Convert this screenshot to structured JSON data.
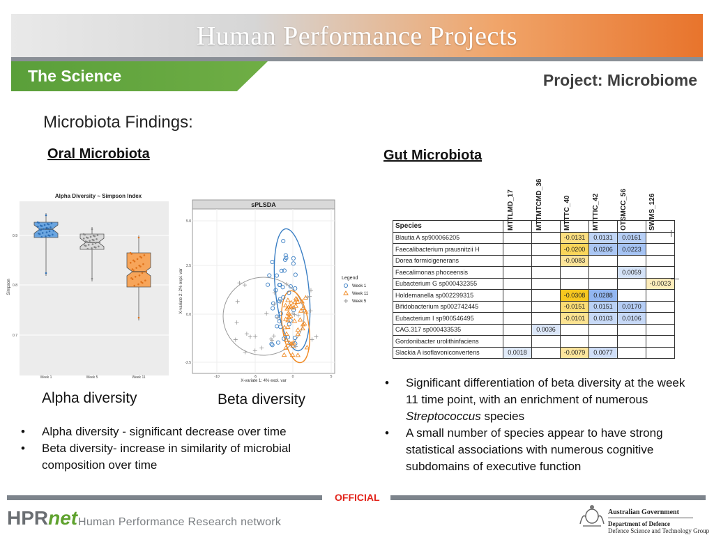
{
  "header": {
    "title": "Human Performance Projects",
    "section_tab": "The Science",
    "project": "Project: Microbiome"
  },
  "main": {
    "findings_title": "Microbiota Findings:",
    "oral_title": "Oral Microbiota",
    "gut_title": "Gut Microbiota",
    "alpha_caption": "Alpha diversity",
    "beta_caption": "Beta diversity",
    "left_bullets": [
      "Alpha diversity - significant decrease over time",
      "Beta diversity- increase in similarity of microbial composition over time"
    ],
    "right_bullets": [
      {
        "pre": "Significant differentiation of beta diversity at the week 11 time point, with an enrichment of numerous ",
        "em": "Streptococcus",
        "post": " species"
      },
      {
        "pre": "A small number of species appear to have strong statistical associations with numerous cognitive subdomains of executive function",
        "em": "",
        "post": ""
      }
    ]
  },
  "alpha_chart": {
    "title": "Alpha Diversity ~ Simpson Index",
    "ylabel": "Simpson",
    "y_ticks": [
      "0.9",
      "0.8",
      "0.7"
    ],
    "categories": [
      "Week 1",
      "Week 5",
      "Week 11"
    ]
  },
  "beta_chart": {
    "title": "sPLSDA",
    "xlabel": "X-variate 1: 4% expl. var",
    "ylabel": "X-variate 2: 2% expl. var",
    "x_ticks": [
      "-10",
      "-5",
      "0",
      "5"
    ],
    "y_ticks": [
      "5.0",
      "2.5",
      "0.0",
      "-2.5"
    ],
    "legend_title": "Legend",
    "legend": [
      {
        "label": "Week 1",
        "color": "#3b7fc4"
      },
      {
        "label": "Week 11",
        "color": "#f08a24"
      },
      {
        "label": "Week 5",
        "color": "#999999"
      }
    ]
  },
  "gut_table": {
    "header": "Species",
    "columns": [
      "MTTLMD_17",
      "MTTMTCMD_36",
      "MTTTC_40",
      "MTTTIC_42",
      "OTSMCC_56",
      "SWMS_126"
    ],
    "rows": [
      {
        "species": "Blautia A sp900066205",
        "values": [
          "",
          "",
          "-0.0131",
          "0.0131",
          "0.0161",
          ""
        ]
      },
      {
        "species": "Faecalibacterium prausnitzii H",
        "values": [
          "",
          "",
          "-0.0200",
          "0.0206",
          "0.0223",
          ""
        ]
      },
      {
        "species": "Dorea formicigenerans",
        "values": [
          "",
          "",
          "-0.0083",
          "",
          "",
          ""
        ]
      },
      {
        "species": "Faecalimonas phoceensis",
        "values": [
          "",
          "",
          "",
          "",
          "0.0059",
          ""
        ]
      },
      {
        "species": "Eubacterium G sp000432355",
        "values": [
          "",
          "",
          "",
          "",
          "",
          "-0.0023"
        ]
      },
      {
        "species": "Holdemanella sp002299315",
        "values": [
          "",
          "",
          "-0.0308",
          "0.0288",
          "",
          ""
        ]
      },
      {
        "species": "Bifidobacterium sp002742445",
        "values": [
          "",
          "",
          "-0.0151",
          "0.0151",
          "0.0170",
          ""
        ]
      },
      {
        "species": "Eubacterium I sp900546495",
        "values": [
          "",
          "",
          "-0.0101",
          "0.0103",
          "0.0106",
          ""
        ]
      },
      {
        "species": "CAG.317 sp000433535",
        "values": [
          "",
          "0.0036",
          "",
          "",
          "",
          ""
        ]
      },
      {
        "species": "Gordonibacter urolithinfaciens",
        "values": [
          "",
          "",
          "",
          "",
          "",
          ""
        ]
      },
      {
        "species": "Slackia A isoflavoniconvertens",
        "values": [
          "0.0018",
          "",
          "-0.0079",
          "0.0077",
          "",
          ""
        ]
      }
    ]
  },
  "footer": {
    "official": "OFFICIAL",
    "logo_main": "HPR",
    "logo_net": "net",
    "network": "Human Performance Research network",
    "gov1": "Australian Government",
    "gov2": "Department of Defence",
    "gov3": "Defence Science and Technology Group"
  }
}
